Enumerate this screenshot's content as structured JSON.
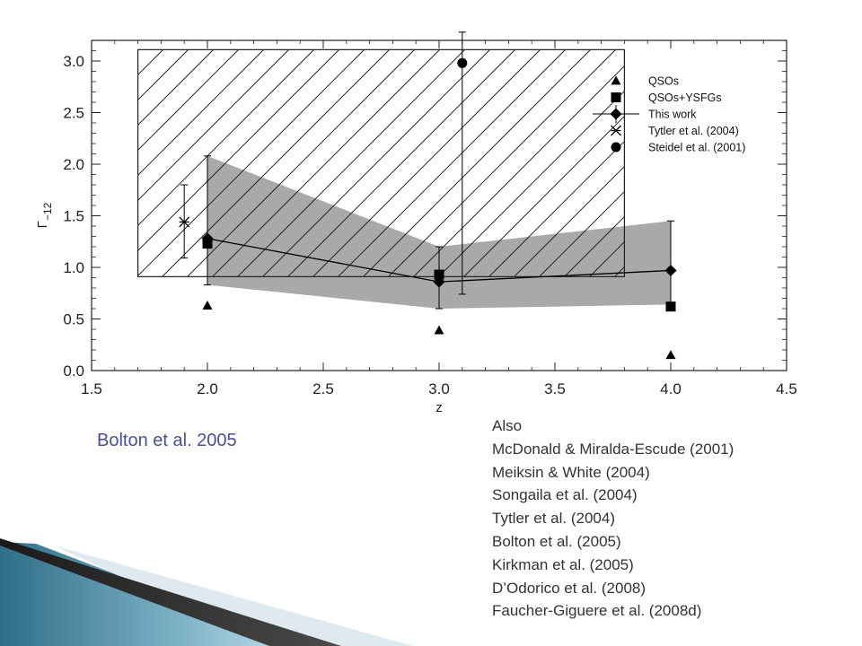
{
  "chart_data": {
    "type": "scatter",
    "xlabel": "z",
    "ylabel": "Γ−12",
    "xlim": [
      1.5,
      4.5
    ],
    "ylim": [
      0.0,
      3.2
    ],
    "xticks": [
      "1.5",
      "2.0",
      "2.5",
      "3.0",
      "3.5",
      "4.0",
      "4.5"
    ],
    "yticks": [
      "0.0",
      "0.5",
      "1.0",
      "1.5",
      "2.0",
      "2.5",
      "3.0"
    ],
    "grid": false,
    "legend_position": "top-right",
    "hatched_region": {
      "x": [
        1.7,
        3.8
      ],
      "y": [
        0.91,
        3.11
      ]
    },
    "shaded_band": {
      "x": [
        2.0,
        3.0,
        4.0
      ],
      "upper": [
        2.08,
        1.2,
        1.45
      ],
      "lower": [
        0.83,
        0.6,
        0.64
      ]
    },
    "series": [
      {
        "name": "QSOs",
        "marker": "triangle",
        "x": [
          2.0,
          3.0,
          4.0
        ],
        "y": [
          0.63,
          0.39,
          0.15
        ]
      },
      {
        "name": "QSOs+YSFGs",
        "marker": "square",
        "x": [
          2.0,
          3.0,
          4.0
        ],
        "y": [
          1.23,
          0.93,
          0.62
        ]
      },
      {
        "name": "This work",
        "marker": "diamond",
        "connected": true,
        "x": [
          2.0,
          3.0,
          4.0
        ],
        "y": [
          1.28,
          0.86,
          0.97
        ],
        "y_err_low": [
          0.45,
          0.26,
          0.33
        ],
        "y_err_high": [
          0.8,
          0.34,
          0.48
        ]
      },
      {
        "name": "Tytler et al. (2004)",
        "marker": "asterisk",
        "x": [
          1.9
        ],
        "y": [
          1.44
        ],
        "y_err_low": [
          0.35
        ],
        "y_err_high": [
          0.36
        ]
      },
      {
        "name": "Steidel et al. (2001)",
        "marker": "circle",
        "x": [
          3.1
        ],
        "y": [
          2.98
        ],
        "y_err_low": [
          2.24
        ],
        "y_err_high": [
          0.3
        ]
      }
    ]
  },
  "credit": "Bolton et al. 2005",
  "references": [
    "Also",
    "McDonald & Miralda-Escude (2001)",
    "Meiksin & White (2004)",
    "Songaila et al. (2004)",
    "Tytler et al. (2004)",
    "Bolton et al. (2005)",
    "Kirkman et al. (2005)",
    "D’Odorico et al. (2008)",
    "Faucher-Giguere et al. (2008d)"
  ]
}
